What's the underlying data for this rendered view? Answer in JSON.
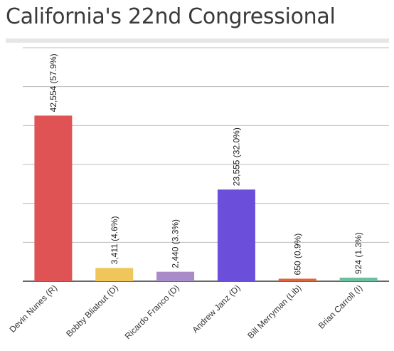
{
  "chart_data": {
    "type": "bar",
    "title": "California's 22nd Congressional",
    "categories": [
      "Devin Nunes (R)",
      "Bobby Bliatout (D)",
      "Ricardo Franco (D)",
      "Andrew Janz (D)",
      "Bill Merryman (Lib)",
      "Brian Carroll (I)"
    ],
    "values": [
      42554,
      3411,
      2440,
      23555,
      650,
      924
    ],
    "data_labels": [
      "42,554 (57.9%)",
      "3,411 (4.6%)",
      "2,440 (3.3%)",
      "23,555 (32.0%)",
      "650 (0.9%)",
      "924 (1.3%)"
    ],
    "bar_colors": [
      "#e05355",
      "#f0c65c",
      "#a98bc7",
      "#6b4fdb",
      "#e0643a",
      "#6cc0a0"
    ],
    "ylim": [
      0,
      60000
    ],
    "y_gridlines": [
      0,
      10000,
      20000,
      30000,
      40000,
      50000,
      60000
    ],
    "y_tick_labels_shown": false,
    "grid": true,
    "legend": "none"
  }
}
